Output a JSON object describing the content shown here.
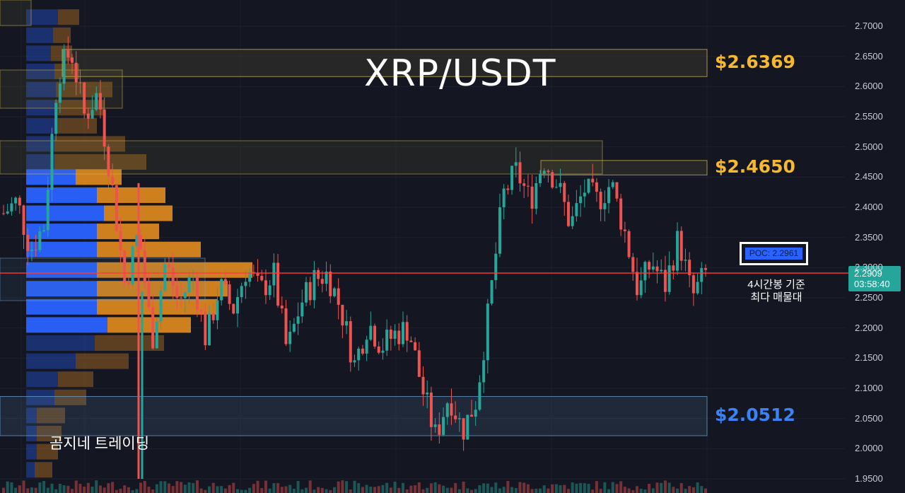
{
  "title": "XRP/USDT",
  "watermark": "곰지네 트레이딩",
  "colors": {
    "background": "#141722",
    "up": "#26a69a",
    "down": "#ef5350",
    "zone_yellow": "#e0c04a",
    "zone_blue": "#6ea8d8",
    "label_yellow": "#f5b82e",
    "label_blue": "#3b82f6",
    "profile_blue": "#2962ff",
    "profile_orange": "#e08a1e",
    "price_line": "#ff3b3b"
  },
  "zones": [
    {
      "label": "$2.6369",
      "color": "yellow",
      "range": [
        2.6165,
        2.6615
      ]
    },
    {
      "label": "$2.4650",
      "color": "yellow",
      "range": [
        2.4535,
        2.4775
      ]
    },
    {
      "label": "$2.0512",
      "color": "blue",
      "range": [
        2.0215,
        2.0865
      ]
    }
  ],
  "poc": {
    "label": "POC: 2.2961",
    "note_line1": "4시간봉 기준",
    "note_line2": "최다 매물대"
  },
  "current_price": {
    "price": "2.2909",
    "countdown": "03:58:40",
    "value": 2.2909
  },
  "chart_data": {
    "type": "candlestick",
    "title": "XRP/USDT",
    "y_ticks": [
      "2.7000",
      "2.6500",
      "2.6000",
      "2.5500",
      "2.5000",
      "2.4500",
      "2.4000",
      "2.3500",
      "2.3000",
      "2.2500",
      "2.2000",
      "2.1500",
      "2.1000",
      "2.0500",
      "2.0000",
      "1.9500"
    ],
    "ylim": [
      1.95,
      2.7
    ],
    "close_path": [
      2.39,
      2.41,
      2.33,
      2.37,
      2.62,
      2.66,
      2.55,
      2.59,
      2.44,
      2.27,
      2.36,
      2.18,
      2.31,
      2.24,
      2.29,
      2.18,
      2.27,
      2.23,
      2.3,
      2.26,
      2.29,
      2.16,
      2.24,
      2.28,
      2.29,
      2.23,
      2.14,
      2.21,
      2.17,
      2.19,
      2.2,
      2.1,
      2.02,
      2.09,
      2.03,
      2.08,
      2.24,
      2.42,
      2.46,
      2.41,
      2.48,
      2.44,
      2.37,
      2.43,
      2.41,
      2.44,
      2.36,
      2.26,
      2.31,
      2.27,
      2.35,
      2.25,
      2.29
    ],
    "volume_profile": [
      {
        "price": 2.715,
        "buy": 45,
        "sell": 30
      },
      {
        "price": 2.685,
        "buy": 38,
        "sell": 25
      },
      {
        "price": 2.655,
        "buy": 35,
        "sell": 30
      },
      {
        "price": 2.625,
        "buy": 40,
        "sell": 35
      },
      {
        "price": 2.595,
        "buy": 42,
        "sell": 80
      },
      {
        "price": 2.565,
        "buy": 40,
        "sell": 70
      },
      {
        "price": 2.535,
        "buy": 40,
        "sell": 60
      },
      {
        "price": 2.505,
        "buy": 40,
        "sell": 100
      },
      {
        "price": 2.475,
        "buy": 40,
        "sell": 130
      },
      {
        "price": 2.45,
        "buy": 70,
        "sell": 65
      },
      {
        "price": 2.42,
        "buy": 100,
        "sell": 97
      },
      {
        "price": 2.39,
        "buy": 110,
        "sell": 97
      },
      {
        "price": 2.36,
        "buy": 100,
        "sell": 88
      },
      {
        "price": 2.33,
        "buy": 100,
        "sell": 147
      },
      {
        "price": 2.296,
        "buy": 100,
        "sell": 220
      },
      {
        "price": 2.265,
        "buy": 100,
        "sell": 185
      },
      {
        "price": 2.235,
        "buy": 100,
        "sell": 170
      },
      {
        "price": 2.205,
        "buy": 115,
        "sell": 118
      },
      {
        "price": 2.175,
        "buy": 97,
        "sell": 98
      },
      {
        "price": 2.145,
        "buy": 70,
        "sell": 75
      },
      {
        "price": 2.115,
        "buy": 45,
        "sell": 50
      },
      {
        "price": 2.085,
        "buy": 40,
        "sell": 45
      },
      {
        "price": 2.055,
        "buy": 15,
        "sell": 40
      },
      {
        "price": 2.025,
        "buy": 15,
        "sell": 35
      },
      {
        "price": 1.995,
        "buy": 15,
        "sell": 30
      },
      {
        "price": 1.965,
        "buy": 12,
        "sell": 25
      }
    ]
  }
}
